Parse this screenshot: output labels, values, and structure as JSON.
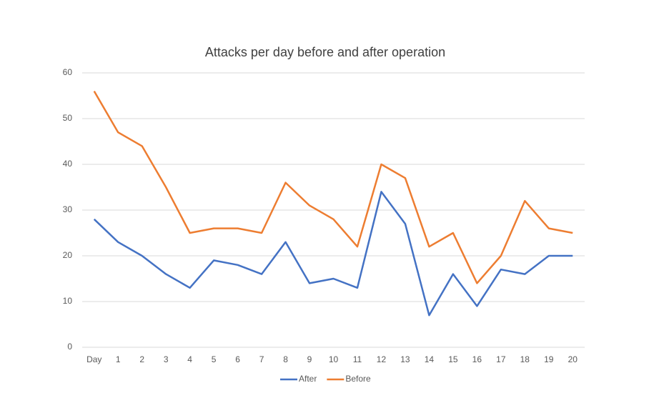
{
  "chart_data": {
    "type": "line",
    "title": "Attacks per day before and after operation",
    "categories": [
      "Day",
      "1",
      "2",
      "3",
      "4",
      "5",
      "6",
      "7",
      "8",
      "9",
      "10",
      "11",
      "12",
      "13",
      "14",
      "15",
      "16",
      "17",
      "18",
      "19",
      "20"
    ],
    "series": [
      {
        "name": "After",
        "color": "#4472c4",
        "values": [
          28,
          23,
          20,
          16,
          13,
          19,
          18,
          16,
          23,
          14,
          15,
          13,
          34,
          27,
          7,
          16,
          9,
          17,
          16,
          20,
          20
        ]
      },
      {
        "name": "Before",
        "color": "#ed7d31",
        "values": [
          56,
          47,
          44,
          35,
          25,
          26,
          26,
          25,
          36,
          31,
          28,
          22,
          40,
          37,
          22,
          25,
          14,
          20,
          32,
          26,
          25
        ]
      }
    ],
    "ylim": [
      0,
      60
    ],
    "yticks": [
      0,
      10,
      20,
      30,
      40,
      50,
      60
    ],
    "grid": true,
    "legend": "bottom"
  }
}
